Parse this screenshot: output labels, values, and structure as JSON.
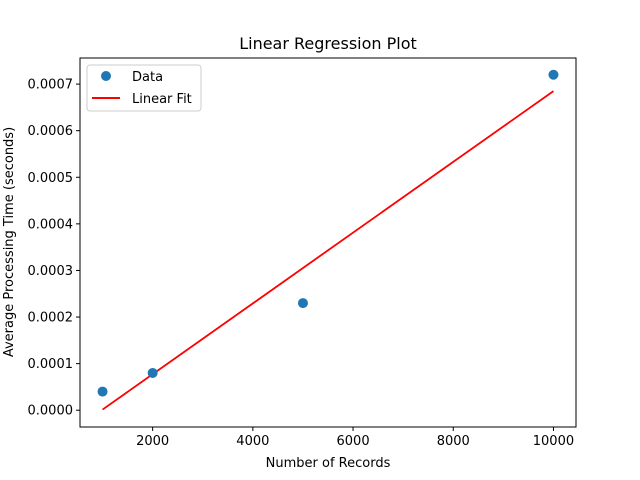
{
  "chart_data": {
    "type": "scatter",
    "title": "Linear Regression Plot",
    "xlabel": "Number of Records",
    "ylabel": "Average Processing Time (seconds)",
    "xlim": [
      550,
      10450
    ],
    "ylim": [
      -3.6e-05,
      0.000756
    ],
    "xticks": [
      2000,
      4000,
      6000,
      8000,
      10000
    ],
    "xtick_labels": [
      "2000",
      "4000",
      "6000",
      "8000",
      "10000"
    ],
    "yticks": [
      0,
      0.0001,
      0.0002,
      0.0003,
      0.0004,
      0.0005,
      0.0006,
      0.0007
    ],
    "ytick_labels": [
      "0.0000",
      "0.0001",
      "0.0002",
      "0.0003",
      "0.0004",
      "0.0005",
      "0.0006",
      "0.0007"
    ],
    "grid": false,
    "legend_position": "top-left",
    "series": [
      {
        "name": "Data",
        "kind": "scatter",
        "color": "#1f77b4",
        "x": [
          1000,
          2000,
          5000,
          10000
        ],
        "y": [
          4e-05,
          8e-05,
          0.00023,
          0.00072
        ]
      },
      {
        "name": "Linear Fit",
        "kind": "line",
        "color": "#ff0000",
        "x": [
          1000,
          10000
        ],
        "y": [
          1.4e-06,
          0.000685
        ]
      }
    ]
  }
}
